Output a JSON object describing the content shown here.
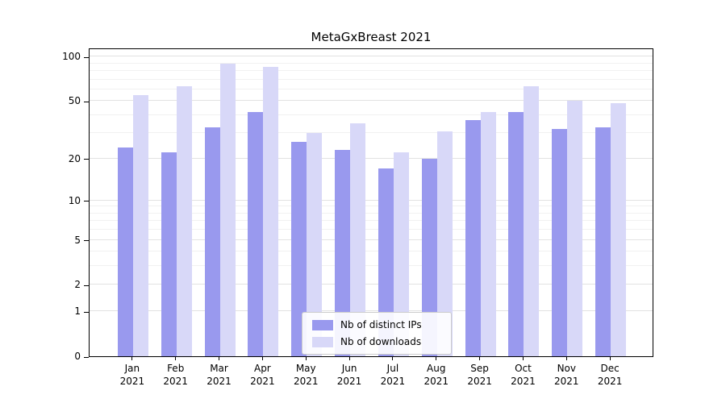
{
  "chart_data": {
    "type": "bar",
    "title": "MetaGxBreast 2021",
    "categories": [
      "Jan 2021",
      "Feb 2021",
      "Mar 2021",
      "Apr 2021",
      "May 2021",
      "Jun 2021",
      "Jul 2021",
      "Aug 2021",
      "Sep 2021",
      "Oct 2021",
      "Nov 2021",
      "Dec 2021"
    ],
    "series": [
      {
        "name": "Nb of distinct IPs",
        "color": "#9999ee",
        "values": [
          24,
          22,
          33,
          42,
          26,
          23,
          17,
          20,
          37,
          42,
          32,
          33
        ]
      },
      {
        "name": "Nb of downloads",
        "color": "#d8d8f8",
        "values": [
          55,
          63,
          90,
          85,
          30,
          35,
          22,
          31,
          42,
          63,
          50,
          48
        ]
      }
    ],
    "yscale": "log1p",
    "ylim": [
      0,
      115
    ],
    "yticks": [
      0,
      1,
      2,
      5,
      10,
      20,
      50,
      100
    ],
    "yticks_minor": [
      3,
      4,
      6,
      7,
      8,
      9,
      30,
      40,
      60,
      70,
      80,
      90
    ],
    "grid": true,
    "legend_position": "lower-center"
  }
}
